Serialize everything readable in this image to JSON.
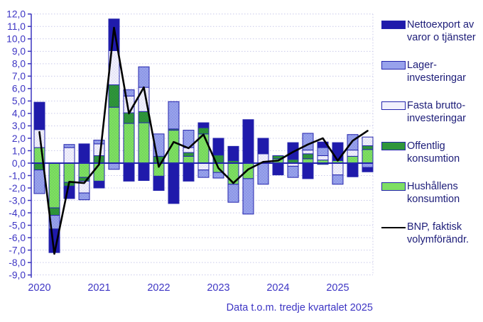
{
  "caption": "Data t.o.m. tredje kvartalet 2025",
  "colors": {
    "axis_text": "#3d35c4",
    "grid": "#c9c9ea",
    "zero_line": "#2424ad",
    "bar_border": "#2424ad",
    "axis_line": "#3b35bf",
    "bnp_line": "#000000"
  },
  "legend": {
    "items": [
      {
        "line1": "Nettoexport av",
        "line2": "varor o tjänster",
        "color": "#1f1aab",
        "type": "box"
      },
      {
        "line1": "Lager-",
        "line2": "investeringar",
        "color": "#98a2ec",
        "type": "box"
      },
      {
        "line1": "Fasta brutto-",
        "line2": "investeringar",
        "color": "#f1f0fc",
        "type": "box"
      },
      {
        "line1": "Offentlig",
        "line2": "konsumtion",
        "color": "#2f963c",
        "type": "box"
      },
      {
        "line1": "Hushållens",
        "line2": "konsumtion",
        "color": "#7edf63",
        "type": "box"
      },
      {
        "line1": "BNP, faktisk",
        "line2": "volymförändr.",
        "color": "#000000",
        "type": "line"
      }
    ]
  },
  "chart_data": {
    "type": "bar",
    "subtype": "stacked-bars-with-line",
    "x_labels": [
      "2020",
      "2021",
      "2022",
      "2023",
      "2024",
      "2025"
    ],
    "quarters": [
      "2020K1",
      "2020K2",
      "2020K3",
      "2020K4",
      "2021K1",
      "2021K2",
      "2021K3",
      "2021K4",
      "2022K1",
      "2022K2",
      "2022K3",
      "2022K4",
      "2023K1",
      "2023K2",
      "2023K3",
      "2023K4",
      "2024K1",
      "2024K2",
      "2024K3",
      "2024K4",
      "2025K1",
      "2025K2",
      "2025K3"
    ],
    "ylim": [
      -9,
      12
    ],
    "ytick_step": 1,
    "grid": true,
    "legend_position": "right",
    "series": [
      {
        "name": "Hushållens konsumtion",
        "color": "#7edf63",
        "dot": "#6acb52",
        "values": [
          1.25,
          -3.6,
          -1.55,
          -1.15,
          -1.45,
          4.5,
          3.2,
          3.25,
          -1.05,
          2.65,
          0.55,
          2.35,
          -0.75,
          -1.7,
          -1.25,
          0,
          0.35,
          0,
          0.35,
          0.25,
          0.2,
          0.55,
          1.1
        ]
      },
      {
        "name": "Offentlig konsumtion",
        "color": "#2f963c",
        "dot": "#29862f",
        "values": [
          -0.55,
          -0.6,
          -0.3,
          -0.3,
          0.6,
          1.8,
          0.85,
          0.9,
          0.55,
          0.1,
          0.3,
          0.5,
          0.65,
          0.2,
          0,
          0,
          0.25,
          0.3,
          0.4,
          -0.1,
          0,
          0,
          0.3
        ]
      },
      {
        "name": "Fasta bruttoinvesteringar",
        "color": "#f1f0fc",
        "dot": "#d6d6ef",
        "values": [
          1.45,
          0,
          1.25,
          -0.95,
          0.95,
          2.75,
          1.35,
          1.95,
          0,
          0,
          0.4,
          -0.55,
          0,
          0,
          0,
          0.75,
          0,
          -0.25,
          0.3,
          0.35,
          -0.95,
          0.5,
          0.7
        ]
      },
      {
        "name": "Lagerinvesteringar",
        "color": "#98a2ec",
        "dot": "#7e89dc",
        "values": [
          -1.9,
          -1.1,
          0.25,
          -0.55,
          0.3,
          -0.5,
          0.5,
          1.65,
          1.8,
          2.2,
          1.4,
          -0.6,
          -0.45,
          -1.45,
          -2.85,
          -1.7,
          0,
          -0.9,
          1.35,
          0.65,
          -0.75,
          1.25,
          -0.35
        ]
      },
      {
        "name": "Nettoexport av varor o tjänster",
        "color": "#1f1aab",
        "values": [
          2.2,
          -1.9,
          -1.0,
          1.55,
          -0.55,
          2.55,
          -1.45,
          -1.4,
          -1.15,
          -3.25,
          -1.45,
          0.4,
          1.35,
          1.15,
          3.5,
          1.25,
          -0.95,
          1.35,
          -1.25,
          0.45,
          1.45,
          -1.1,
          -0.35
        ]
      }
    ],
    "line": {
      "name": "BNP, faktisk volymförändr.",
      "color": "#000000",
      "values": [
        2.5,
        -7.3,
        -1.5,
        -1.6,
        -0.1,
        10.9,
        4.0,
        6.1,
        -0.3,
        1.7,
        1.2,
        2.3,
        -0.4,
        -1.6,
        -0.5,
        0.1,
        0.2,
        0.9,
        1.5,
        2.0,
        0.2,
        1.8,
        2.6
      ]
    }
  }
}
